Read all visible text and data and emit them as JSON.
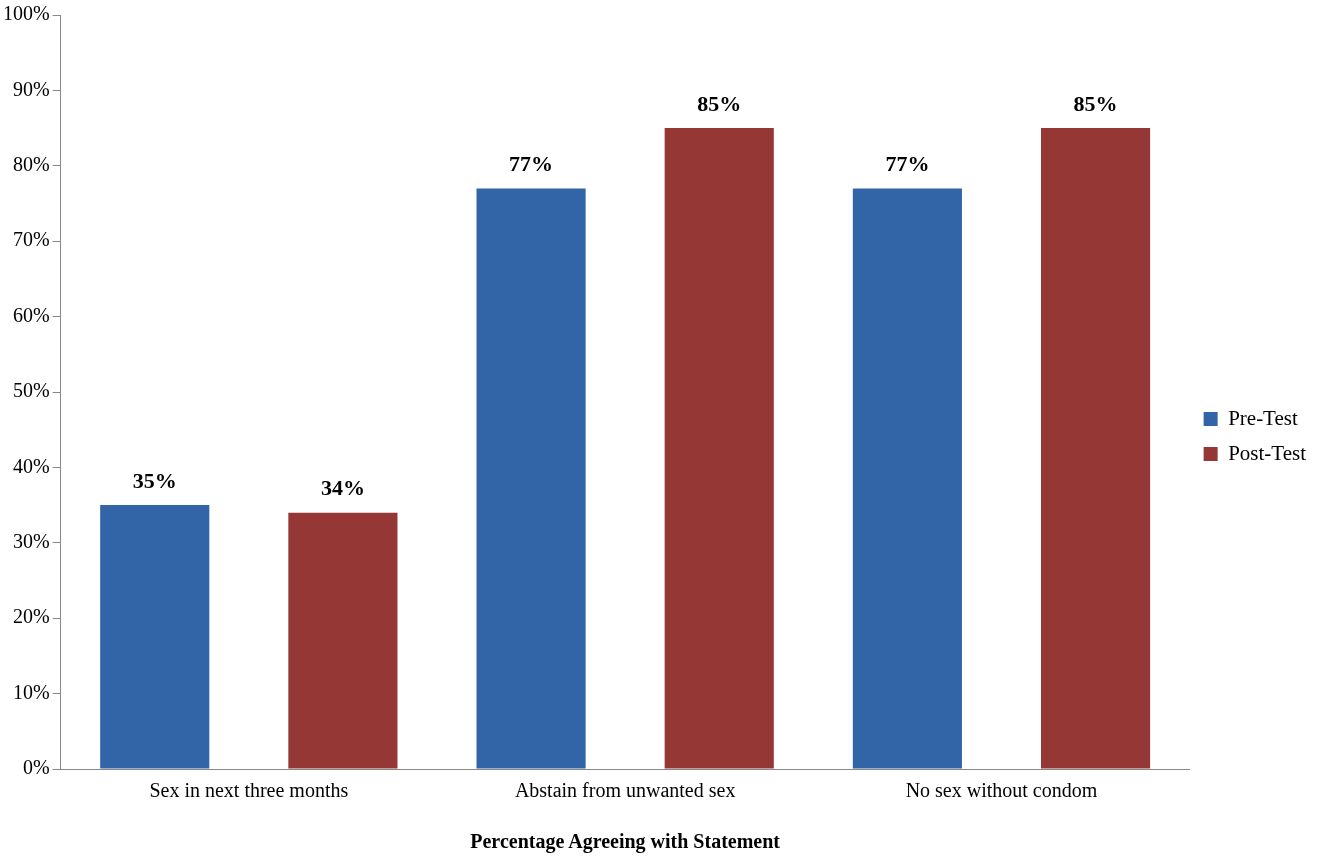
{
  "chart_data": {
    "type": "bar",
    "xlabel": "Percentage Agreeing with Statement",
    "categories": [
      "Sex in next three months",
      "Abstain from unwanted sex",
      "No sex without condom"
    ],
    "series": [
      {
        "name": "Pre-Test",
        "color": "#3165a8",
        "values": [
          35,
          77,
          77
        ],
        "value_labels": [
          "35%",
          "77%",
          "77%"
        ]
      },
      {
        "name": "Post-Test",
        "color": "#953735",
        "values": [
          34,
          85,
          85
        ],
        "value_labels": [
          "34%",
          "85%",
          "85%"
        ]
      }
    ],
    "ylim": [
      0,
      100
    ],
    "yticks": [
      {
        "value": 0,
        "label": "0%"
      },
      {
        "value": 10,
        "label": "10%"
      },
      {
        "value": 20,
        "label": "20%"
      },
      {
        "value": 30,
        "label": "30%"
      },
      {
        "value": 40,
        "label": "40%"
      },
      {
        "value": 50,
        "label": "50%"
      },
      {
        "value": 60,
        "label": "60%"
      },
      {
        "value": 70,
        "label": "70%"
      },
      {
        "value": 80,
        "label": "80%"
      },
      {
        "value": 90,
        "label": "90%"
      },
      {
        "value": 100,
        "label": "100%"
      }
    ],
    "grid": false,
    "legend": "right"
  }
}
